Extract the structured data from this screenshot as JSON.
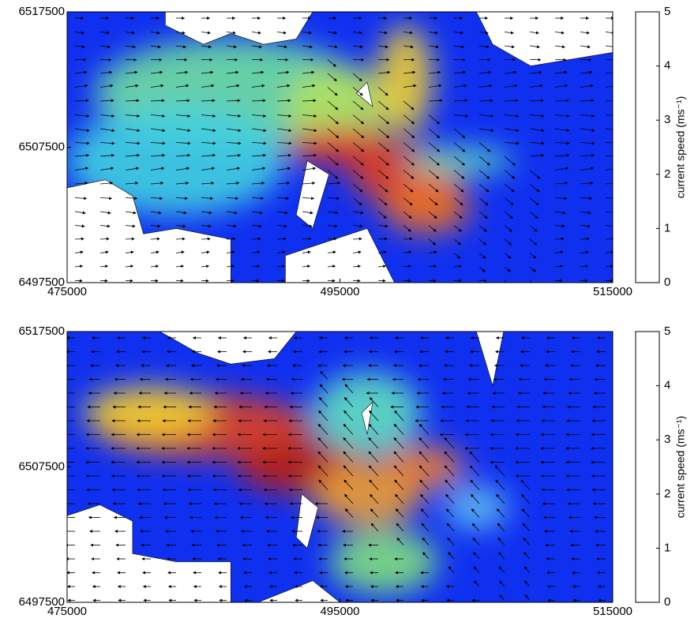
{
  "chart_data": [
    {
      "type": "heatmap",
      "xlim": [
        475000,
        515000
      ],
      "xticks": [
        475000,
        495000,
        515000
      ],
      "ylim": [
        6497500,
        6517500
      ],
      "yticks": [
        6497500,
        6507500,
        6517500
      ],
      "colorbar": {
        "label": "current speed (ms⁻¹)",
        "lim": [
          0,
          5
        ],
        "ticks": [
          0,
          1,
          2,
          3,
          4,
          5
        ],
        "colormap": [
          "#00008f",
          "#0000ff",
          "#00ffff",
          "#ffff00",
          "#ff0000",
          "#800000"
        ]
      }
    },
    {
      "type": "heatmap",
      "xlim": [
        475000,
        515000
      ],
      "xticks": [
        475000,
        495000,
        515000
      ],
      "ylim": [
        6497500,
        6517500
      ],
      "yticks": [
        6497500,
        6507500,
        6517500
      ],
      "colorbar": {
        "label": "current speed (ms⁻¹)",
        "lim": [
          0,
          5
        ],
        "ticks": [
          0,
          1,
          2,
          3,
          4,
          5
        ],
        "colormap": [
          "#00008f",
          "#0000ff",
          "#00ffff",
          "#ffff00",
          "#ff0000",
          "#800000"
        ]
      }
    }
  ]
}
